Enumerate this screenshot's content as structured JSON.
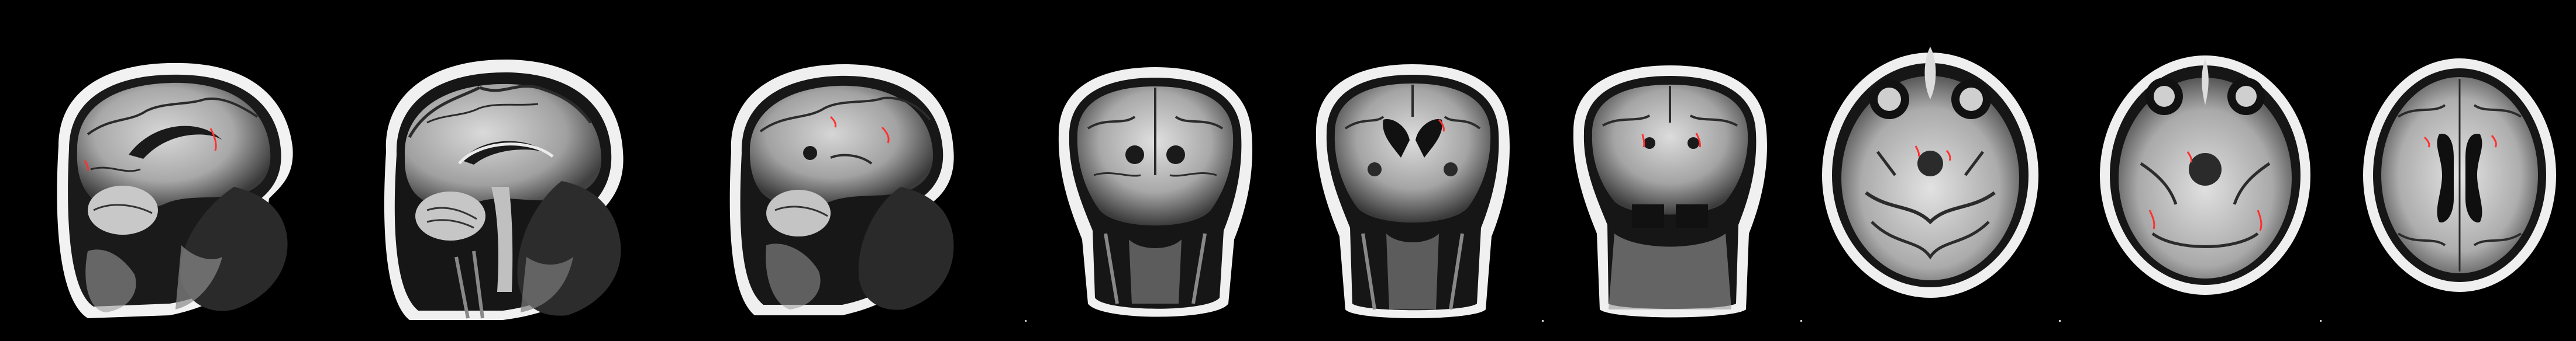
{
  "image": {
    "background_color": "#000000",
    "highlight_color": "#ff3030",
    "panels": [
      {
        "view": "sagittal"
      },
      {
        "view": "sagittal"
      },
      {
        "view": "sagittal"
      },
      {
        "view": "coronal"
      },
      {
        "view": "coronal"
      },
      {
        "view": "coronal"
      },
      {
        "view": "axial"
      },
      {
        "view": "axial"
      },
      {
        "view": "axial"
      }
    ]
  }
}
